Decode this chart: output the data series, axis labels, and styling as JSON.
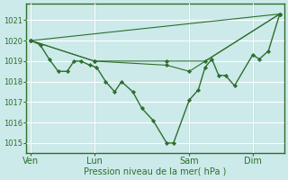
{
  "xlabel": "Pression niveau de la mer( hPa )",
  "bg_color": "#cceaea",
  "grid_color": "#ffffff",
  "line_color": "#2d6e2d",
  "marker_color": "#2d6e2d",
  "ylim": [
    1014.5,
    1021.8
  ],
  "yticks": [
    1015,
    1016,
    1017,
    1018,
    1019,
    1020,
    1021
  ],
  "xtick_labels": [
    "Ven",
    "Lun",
    "Sam",
    "Dim"
  ],
  "xtick_positions": [
    0,
    28,
    70,
    98
  ],
  "vline_positions": [
    0,
    28,
    70,
    98
  ],
  "xlim": [
    -2,
    112
  ],
  "series": [
    {
      "x": [
        0,
        4,
        8,
        12,
        16,
        19,
        22,
        26,
        29,
        33,
        37,
        40,
        45,
        49,
        54,
        60,
        63,
        70,
        74,
        77,
        80,
        83,
        86,
        90,
        98,
        101,
        105,
        110
      ],
      "y": [
        1020.0,
        1019.8,
        1019.1,
        1018.5,
        1018.5,
        1019.0,
        1019.0,
        1018.8,
        1018.7,
        1018.0,
        1017.5,
        1018.0,
        1017.5,
        1016.7,
        1016.1,
        1015.0,
        1015.0,
        1017.1,
        1017.6,
        1018.7,
        1019.1,
        1018.3,
        1018.3,
        1017.8,
        1019.3,
        1019.1,
        1019.5,
        1021.3
      ],
      "lw": 1.0,
      "marker": "D"
    },
    {
      "x": [
        0,
        28,
        60,
        70,
        110
      ],
      "y": [
        1020.0,
        1019.0,
        1018.8,
        1018.5,
        1021.3
      ],
      "lw": 0.8,
      "marker": "D"
    },
    {
      "x": [
        0,
        28,
        60,
        77,
        110
      ],
      "y": [
        1020.0,
        1019.0,
        1019.0,
        1019.0,
        1021.3
      ],
      "lw": 0.8,
      "marker": "D"
    },
    {
      "x": [
        0,
        110
      ],
      "y": [
        1020.0,
        1021.3
      ],
      "lw": 0.8,
      "marker": "D"
    }
  ]
}
